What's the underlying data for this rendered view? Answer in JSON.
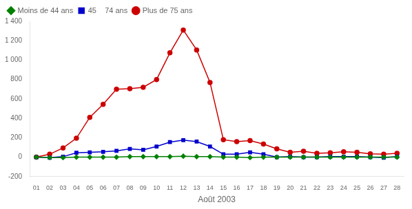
{
  "chart_data": {
    "type": "line",
    "x_label": "Août 2003",
    "x": [
      1,
      2,
      3,
      4,
      5,
      6,
      7,
      8,
      9,
      10,
      11,
      12,
      13,
      14,
      15,
      16,
      17,
      18,
      19,
      20,
      21,
      22,
      23,
      24,
      25,
      26,
      27,
      28
    ],
    "series": [
      {
        "name": "Moins de 44 ans",
        "color": "#008000",
        "marker": "diamond",
        "values": [
          0,
          -5,
          -5,
          0,
          0,
          0,
          0,
          5,
          5,
          5,
          5,
          10,
          5,
          5,
          0,
          0,
          -5,
          0,
          0,
          0,
          0,
          0,
          0,
          0,
          0,
          0,
          0,
          0
        ]
      },
      {
        "name": "45    74 ans",
        "color": "#0000CC",
        "marker": "square",
        "values": [
          0,
          -5,
          5,
          45,
          50,
          55,
          65,
          85,
          75,
          110,
          155,
          175,
          160,
          110,
          30,
          30,
          50,
          30,
          0,
          5,
          0,
          0,
          5,
          5,
          5,
          0,
          -5,
          5
        ]
      },
      {
        "name": "Plus de 75 ans",
        "color": "#CC0000",
        "marker": "circle",
        "values": [
          0,
          30,
          95,
          195,
          410,
          545,
          700,
          705,
          720,
          800,
          1075,
          1310,
          1105,
          770,
          180,
          160,
          170,
          135,
          85,
          50,
          60,
          40,
          45,
          55,
          50,
          35,
          30,
          40
        ]
      }
    ],
    "xlim": [
      0.5,
      28.5
    ],
    "xticks": [
      {
        "value": 1,
        "label": "01"
      },
      {
        "value": 2,
        "label": "02"
      },
      {
        "value": 3,
        "label": "03"
      },
      {
        "value": 4,
        "label": "04"
      },
      {
        "value": 5,
        "label": "05"
      },
      {
        "value": 6,
        "label": "06"
      },
      {
        "value": 7,
        "label": "07"
      },
      {
        "value": 8,
        "label": "08"
      },
      {
        "value": 9,
        "label": "09"
      },
      {
        "value": 10,
        "label": "10"
      },
      {
        "value": 11,
        "label": "11"
      },
      {
        "value": 12,
        "label": "12"
      },
      {
        "value": 13,
        "label": "13"
      },
      {
        "value": 14,
        "label": "14"
      },
      {
        "value": 15,
        "label": "15"
      },
      {
        "value": 16,
        "label": "16"
      },
      {
        "value": 17,
        "label": "17"
      },
      {
        "value": 18,
        "label": "18"
      },
      {
        "value": 19,
        "label": "19"
      },
      {
        "value": 20,
        "label": "20"
      },
      {
        "value": 21,
        "label": "21"
      },
      {
        "value": 22,
        "label": "22"
      },
      {
        "value": 23,
        "label": "23"
      },
      {
        "value": 24,
        "label": "24"
      },
      {
        "value": 25,
        "label": "25"
      },
      {
        "value": 26,
        "label": "26"
      },
      {
        "value": 27,
        "label": "27"
      },
      {
        "value": 28,
        "label": "28"
      }
    ],
    "ylim": [
      -200,
      1400
    ],
    "yticks": [
      -200,
      0,
      200,
      400,
      600,
      800,
      {
        "value": 1000,
        "label": "1 000"
      },
      {
        "value": 1200,
        "label": "1 200"
      },
      {
        "value": 1400,
        "label": "1 400"
      }
    ],
    "grid": false,
    "legend": "upper-left"
  }
}
